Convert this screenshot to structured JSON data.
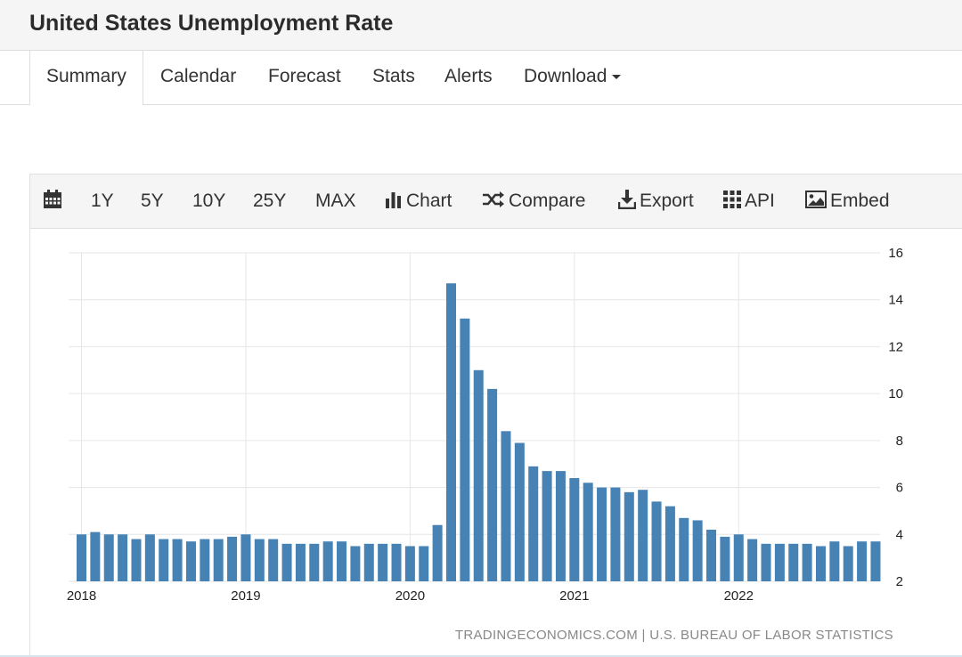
{
  "header": {
    "title": "United States Unemployment Rate"
  },
  "tabs": [
    {
      "label": "Summary"
    },
    {
      "label": "Calendar"
    },
    {
      "label": "Forecast"
    },
    {
      "label": "Stats"
    },
    {
      "label": "Alerts"
    },
    {
      "label": "Download"
    }
  ],
  "toolbar": {
    "calendar_icon": "calendar-icon",
    "ranges": [
      "1Y",
      "5Y",
      "10Y",
      "25Y",
      "MAX"
    ],
    "chart_label": "Chart",
    "compare_label": "Compare",
    "export_label": "Export",
    "api_label": "API",
    "embed_label": "Embed"
  },
  "colors": {
    "bar": "#4682b4",
    "grid": "#e6e6e6"
  },
  "chart_data": {
    "type": "bar",
    "title": "",
    "xlabel": "",
    "ylabel": "",
    "ylim": [
      2,
      16
    ],
    "yticks": [
      2,
      4,
      6,
      8,
      10,
      12,
      14,
      16
    ],
    "xtick_labels": [
      "2018",
      "2019",
      "2020",
      "2021",
      "2022"
    ],
    "grid": true,
    "y_axis_side": "right",
    "source": "TRADINGECONOMICS.COM | U.S. BUREAU OF LABOR STATISTICS",
    "categories": [
      "2018-01",
      "2018-02",
      "2018-03",
      "2018-04",
      "2018-05",
      "2018-06",
      "2018-07",
      "2018-08",
      "2018-09",
      "2018-10",
      "2018-11",
      "2018-12",
      "2019-01",
      "2019-02",
      "2019-03",
      "2019-04",
      "2019-05",
      "2019-06",
      "2019-07",
      "2019-08",
      "2019-09",
      "2019-10",
      "2019-11",
      "2019-12",
      "2020-01",
      "2020-02",
      "2020-03",
      "2020-04",
      "2020-05",
      "2020-06",
      "2020-07",
      "2020-08",
      "2020-09",
      "2020-10",
      "2020-11",
      "2020-12",
      "2021-01",
      "2021-02",
      "2021-03",
      "2021-04",
      "2021-05",
      "2021-06",
      "2021-07",
      "2021-08",
      "2021-09",
      "2021-10",
      "2021-11",
      "2021-12",
      "2022-01",
      "2022-02",
      "2022-03",
      "2022-04",
      "2022-05",
      "2022-06",
      "2022-07",
      "2022-08",
      "2022-09",
      "2022-10",
      "2022-11"
    ],
    "values": [
      4.0,
      4.1,
      4.0,
      4.0,
      3.8,
      4.0,
      3.8,
      3.8,
      3.7,
      3.8,
      3.8,
      3.9,
      4.0,
      3.8,
      3.8,
      3.6,
      3.6,
      3.6,
      3.7,
      3.7,
      3.5,
      3.6,
      3.6,
      3.6,
      3.5,
      3.5,
      4.4,
      14.7,
      13.2,
      11.0,
      10.2,
      8.4,
      7.9,
      6.9,
      6.7,
      6.7,
      6.4,
      6.2,
      6.0,
      6.0,
      5.8,
      5.9,
      5.4,
      5.2,
      4.7,
      4.6,
      4.2,
      3.9,
      4.0,
      3.8,
      3.6,
      3.6,
      3.6,
      3.6,
      3.5,
      3.7,
      3.5,
      3.7,
      3.7
    ]
  }
}
